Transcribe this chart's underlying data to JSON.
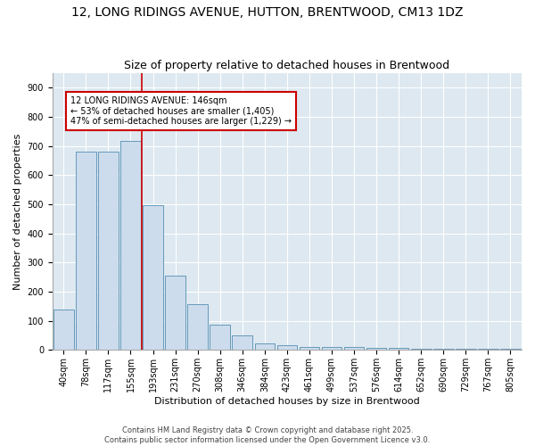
{
  "title_line1": "12, LONG RIDINGS AVENUE, HUTTON, BRENTWOOD, CM13 1DZ",
  "title_line2": "Size of property relative to detached houses in Brentwood",
  "xlabel": "Distribution of detached houses by size in Brentwood",
  "ylabel": "Number of detached properties",
  "categories": [
    "40sqm",
    "78sqm",
    "117sqm",
    "155sqm",
    "193sqm",
    "231sqm",
    "270sqm",
    "308sqm",
    "346sqm",
    "384sqm",
    "423sqm",
    "461sqm",
    "499sqm",
    "537sqm",
    "576sqm",
    "614sqm",
    "652sqm",
    "690sqm",
    "729sqm",
    "767sqm",
    "805sqm"
  ],
  "values": [
    140,
    680,
    680,
    718,
    498,
    255,
    157,
    88,
    50,
    22,
    18,
    10,
    9,
    9,
    8,
    7,
    5,
    4,
    3,
    5,
    3
  ],
  "bar_color": "#ccdcec",
  "bar_edge_color": "#6699bb",
  "vline_x": 3.5,
  "vline_color": "#cc0000",
  "annotation_text": "12 LONG RIDINGS AVENUE: 146sqm\n← 53% of detached houses are smaller (1,405)\n47% of semi-detached houses are larger (1,229) →",
  "annotation_box_color": "#cc0000",
  "ylim": [
    0,
    950
  ],
  "yticks": [
    0,
    100,
    200,
    300,
    400,
    500,
    600,
    700,
    800,
    900
  ],
  "plot_bg_color": "#dde8f0",
  "footer_text": "Contains HM Land Registry data © Crown copyright and database right 2025.\nContains public sector information licensed under the Open Government Licence v3.0.",
  "title_fontsize": 10,
  "subtitle_fontsize": 9,
  "tick_fontsize": 7,
  "ylabel_fontsize": 8,
  "xlabel_fontsize": 8,
  "annot_fontsize": 7,
  "footer_fontsize": 6
}
